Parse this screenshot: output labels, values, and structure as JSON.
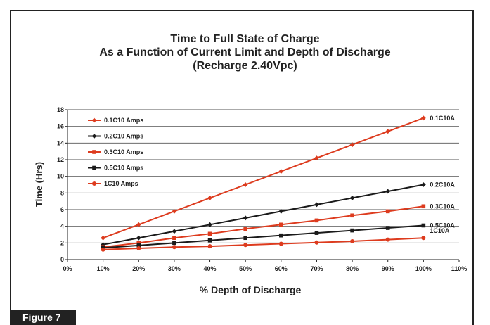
{
  "figure_label": "Figure 7",
  "chart_data": {
    "type": "line",
    "title": [
      "Time to Full State of Charge",
      "As a Function of Current Limit and Depth of Discharge",
      "(Recharge 2.40Vpc)"
    ],
    "xlabel": "% Depth of Discharge",
    "ylabel": "Time (Hrs)",
    "xlim": [
      0,
      110
    ],
    "ylim": [
      0,
      18
    ],
    "x_ticks": [
      0,
      10,
      20,
      30,
      40,
      50,
      60,
      70,
      80,
      90,
      100,
      110
    ],
    "x_tick_labels": [
      "0%",
      "10%",
      "20%",
      "30%",
      "40%",
      "50%",
      "60%",
      "70%",
      "80%",
      "90%",
      "100%",
      "110%"
    ],
    "y_ticks": [
      0,
      2,
      4,
      6,
      8,
      10,
      12,
      14,
      16,
      18
    ],
    "y_tick_labels": [
      "0",
      "2",
      "4",
      "6",
      "8",
      "10",
      "12",
      "14",
      "16",
      "18"
    ],
    "grid": "horizontal",
    "legend_position": "top-left",
    "x": [
      10,
      20,
      30,
      40,
      50,
      60,
      70,
      80,
      90,
      100
    ],
    "series": [
      {
        "name": "0.1C10 Amps",
        "end_label": "0.1C10A",
        "color": "#dd3b1e",
        "marker": "diamond",
        "values": [
          2.6,
          4.2,
          5.8,
          7.4,
          9.0,
          10.6,
          12.2,
          13.8,
          15.4,
          17.0
        ]
      },
      {
        "name": "0.2C10 Amps",
        "end_label": "0.2C10A",
        "color": "#1a1a1a",
        "marker": "diamond",
        "values": [
          1.8,
          2.6,
          3.4,
          4.2,
          5.0,
          5.8,
          6.6,
          7.4,
          8.2,
          9.0
        ]
      },
      {
        "name": "0.3C10 Amps",
        "end_label": "0.3C10A",
        "color": "#dd3b1e",
        "marker": "square",
        "values": [
          1.5,
          2.0,
          2.6,
          3.1,
          3.7,
          4.2,
          4.7,
          5.3,
          5.8,
          6.4
        ]
      },
      {
        "name": "0.5C10 Amps",
        "end_label": "0.5C10A",
        "color": "#1a1a1a",
        "marker": "square",
        "values": [
          1.4,
          1.7,
          2.0,
          2.3,
          2.6,
          2.9,
          3.2,
          3.5,
          3.8,
          4.1
        ]
      },
      {
        "name": "1C10 Amps",
        "end_label": "1C10A",
        "color": "#dd3b1e",
        "marker": "circle",
        "values": [
          1.2,
          1.35,
          1.5,
          1.6,
          1.75,
          1.9,
          2.05,
          2.2,
          2.4,
          2.6
        ]
      }
    ]
  }
}
